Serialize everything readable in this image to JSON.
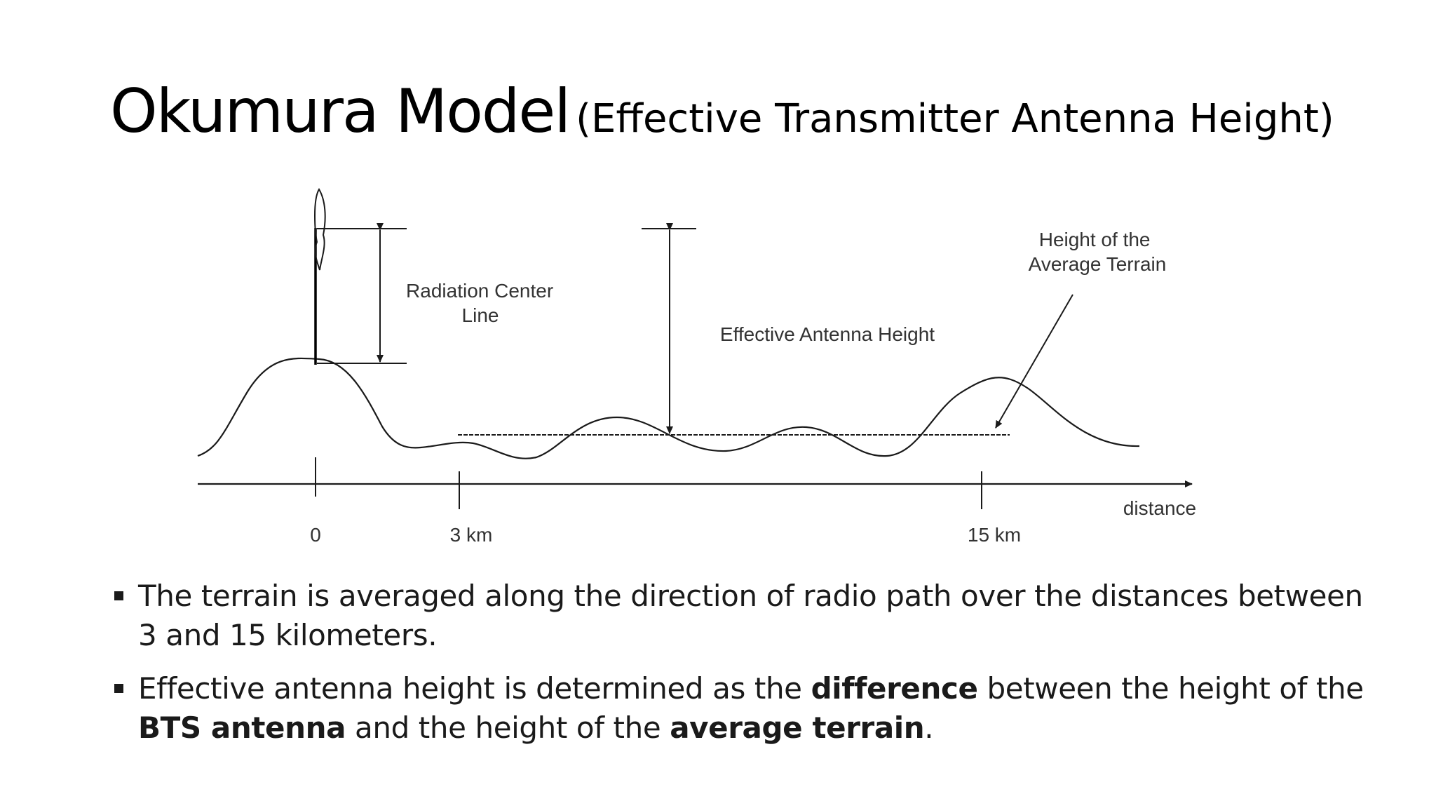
{
  "slide": {
    "title_main": "Okumura Model",
    "title_paren": "(Effective Transmitter Antenna Height)"
  },
  "diagram": {
    "labels": {
      "radiation_center_line_1": "Radiation Center",
      "radiation_center_line_2": "Line",
      "effective_antenna_height": "Effective Antenna Height",
      "average_terrain_line_1": "Height of the",
      "average_terrain_line_2": "Average Terrain",
      "axis_label": "distance"
    },
    "ticks": [
      {
        "label": "0"
      },
      {
        "label": "3 km"
      },
      {
        "label": "15 km"
      }
    ],
    "colors": {
      "line": "#1a1a1a",
      "text": "#333333"
    }
  },
  "bullets": [
    {
      "parts": [
        {
          "text": "The terrain is averaged along the direction of radio path over the distances between 3 and 15 kilometers.",
          "bold": false
        }
      ]
    },
    {
      "parts": [
        {
          "text": "Effective antenna height is determined as the ",
          "bold": false
        },
        {
          "text": "difference",
          "bold": true
        },
        {
          "text": " between the height of the ",
          "bold": false
        },
        {
          "text": "BTS antenna",
          "bold": true
        },
        {
          "text": " and the height of the ",
          "bold": false
        },
        {
          "text": "average terrain",
          "bold": true
        },
        {
          "text": ".",
          "bold": false
        }
      ]
    }
  ]
}
